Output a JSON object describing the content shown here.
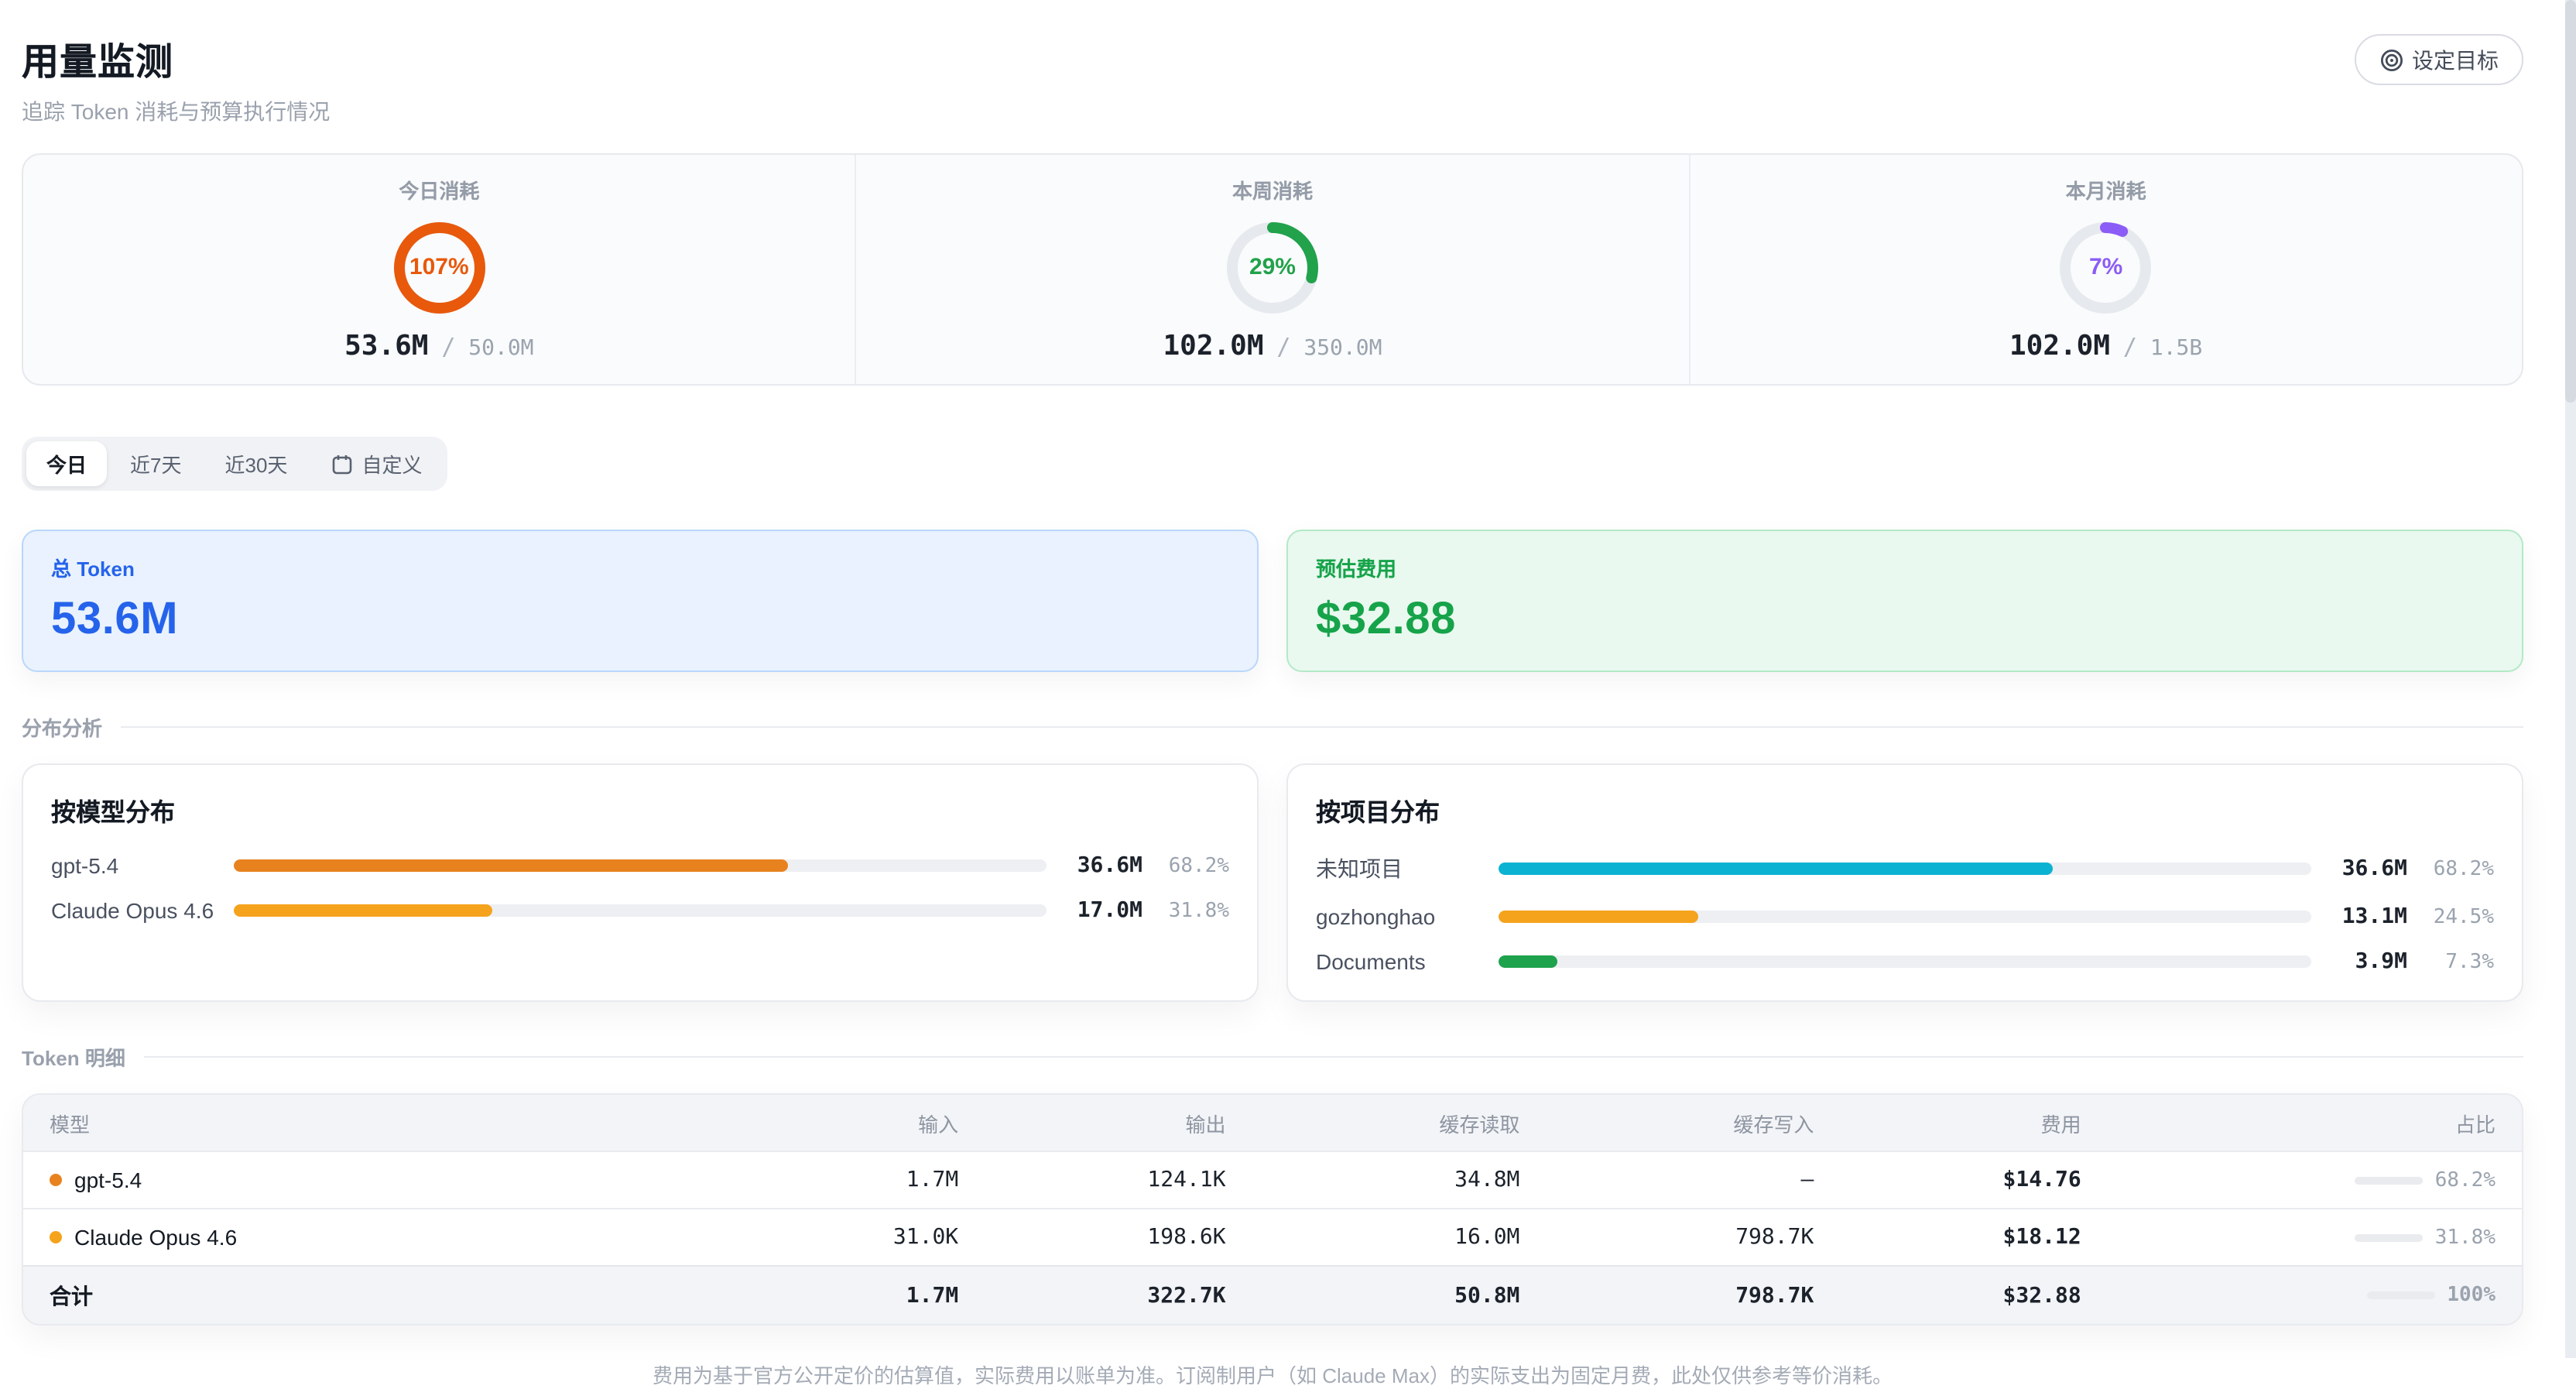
{
  "header": {
    "title": "用量监测",
    "subtitle": "追踪 Token 消耗与预算执行情况",
    "goal_button": "设定目标"
  },
  "gauges": [
    {
      "label": "今日消耗",
      "pct_label": "107%",
      "pct": 107,
      "color": "#e8590c",
      "used": "53.6M",
      "limit": "50.0M",
      "separator": "/"
    },
    {
      "label": "本周消耗",
      "pct_label": "29%",
      "pct": 29,
      "color": "#21a24b",
      "used": "102.0M",
      "limit": "350.0M",
      "separator": "/"
    },
    {
      "label": "本月消耗",
      "pct_label": "7%",
      "pct": 7,
      "color": "#8b5cf6",
      "used": "102.0M",
      "limit": "1.5B",
      "separator": "/"
    }
  ],
  "tabs": [
    {
      "label": "今日",
      "active": true
    },
    {
      "label": "近7天",
      "active": false
    },
    {
      "label": "近30天",
      "active": false
    },
    {
      "label": "自定义",
      "active": false,
      "icon": "calendar-icon"
    }
  ],
  "summary_cards": [
    {
      "label": "总 Token",
      "value": "53.6M",
      "accent": "#2563eb",
      "bg": "#e9f2fe",
      "border": "#bad7fb"
    },
    {
      "label": "预估费用",
      "value": "$32.88",
      "accent": "#16a34a",
      "bg": "#e9f9ef",
      "border": "#b3e9c7"
    }
  ],
  "sections": {
    "distribution": "分布分析",
    "detail": "Token 明细"
  },
  "distribution": {
    "by_model": {
      "title": "按模型分布",
      "rows": [
        {
          "label": "gpt-5.4",
          "value": "36.6M",
          "pct": "68.2%",
          "pct_num": 68.2,
          "color": "#e8821f"
        },
        {
          "label": "Claude Opus 4.6",
          "value": "17.0M",
          "pct": "31.8%",
          "pct_num": 31.8,
          "color": "#f5a31d"
        }
      ]
    },
    "by_project": {
      "title": "按项目分布",
      "rows": [
        {
          "label": "未知项目",
          "value": "36.6M",
          "pct": "68.2%",
          "pct_num": 68.2,
          "color": "#0cb2d1"
        },
        {
          "label": "gozhonghao",
          "value": "13.1M",
          "pct": "24.5%",
          "pct_num": 24.5,
          "color": "#f5a31d"
        },
        {
          "label": "Documents",
          "value": "3.9M",
          "pct": "7.3%",
          "pct_num": 7.3,
          "color": "#1ea24c"
        }
      ]
    }
  },
  "table": {
    "headers": [
      "模型",
      "输入",
      "输出",
      "缓存读取",
      "缓存写入",
      "费用",
      "占比"
    ],
    "rows": [
      {
        "model": "gpt-5.4",
        "dot_color": "#e8821f",
        "input": "1.7M",
        "output": "124.1K",
        "cache_read": "34.8M",
        "cache_write": "–",
        "cost": "$14.76",
        "share": "68.2%",
        "share_num": 68.2,
        "bar_color": "#e8821f"
      },
      {
        "model": "Claude Opus 4.6",
        "dot_color": "#f5a31d",
        "input": "31.0K",
        "output": "198.6K",
        "cache_read": "16.0M",
        "cache_write": "798.7K",
        "cost": "$18.12",
        "share": "31.8%",
        "share_num": 31.8,
        "bar_color": "#f5a31d"
      }
    ],
    "total": {
      "label": "合计",
      "input": "1.7M",
      "output": "322.7K",
      "cache_read": "50.8M",
      "cache_write": "798.7K",
      "cost": "$32.88",
      "share": "100%",
      "share_num": 100,
      "bar_color": "#24292f"
    }
  },
  "footer": {
    "note": "费用为基于官方公开定价的估算值，实际费用以账单为准。订阅制用户（如 Claude Max）的实际支出为固定月费，此处仅供参考等价消耗。"
  }
}
